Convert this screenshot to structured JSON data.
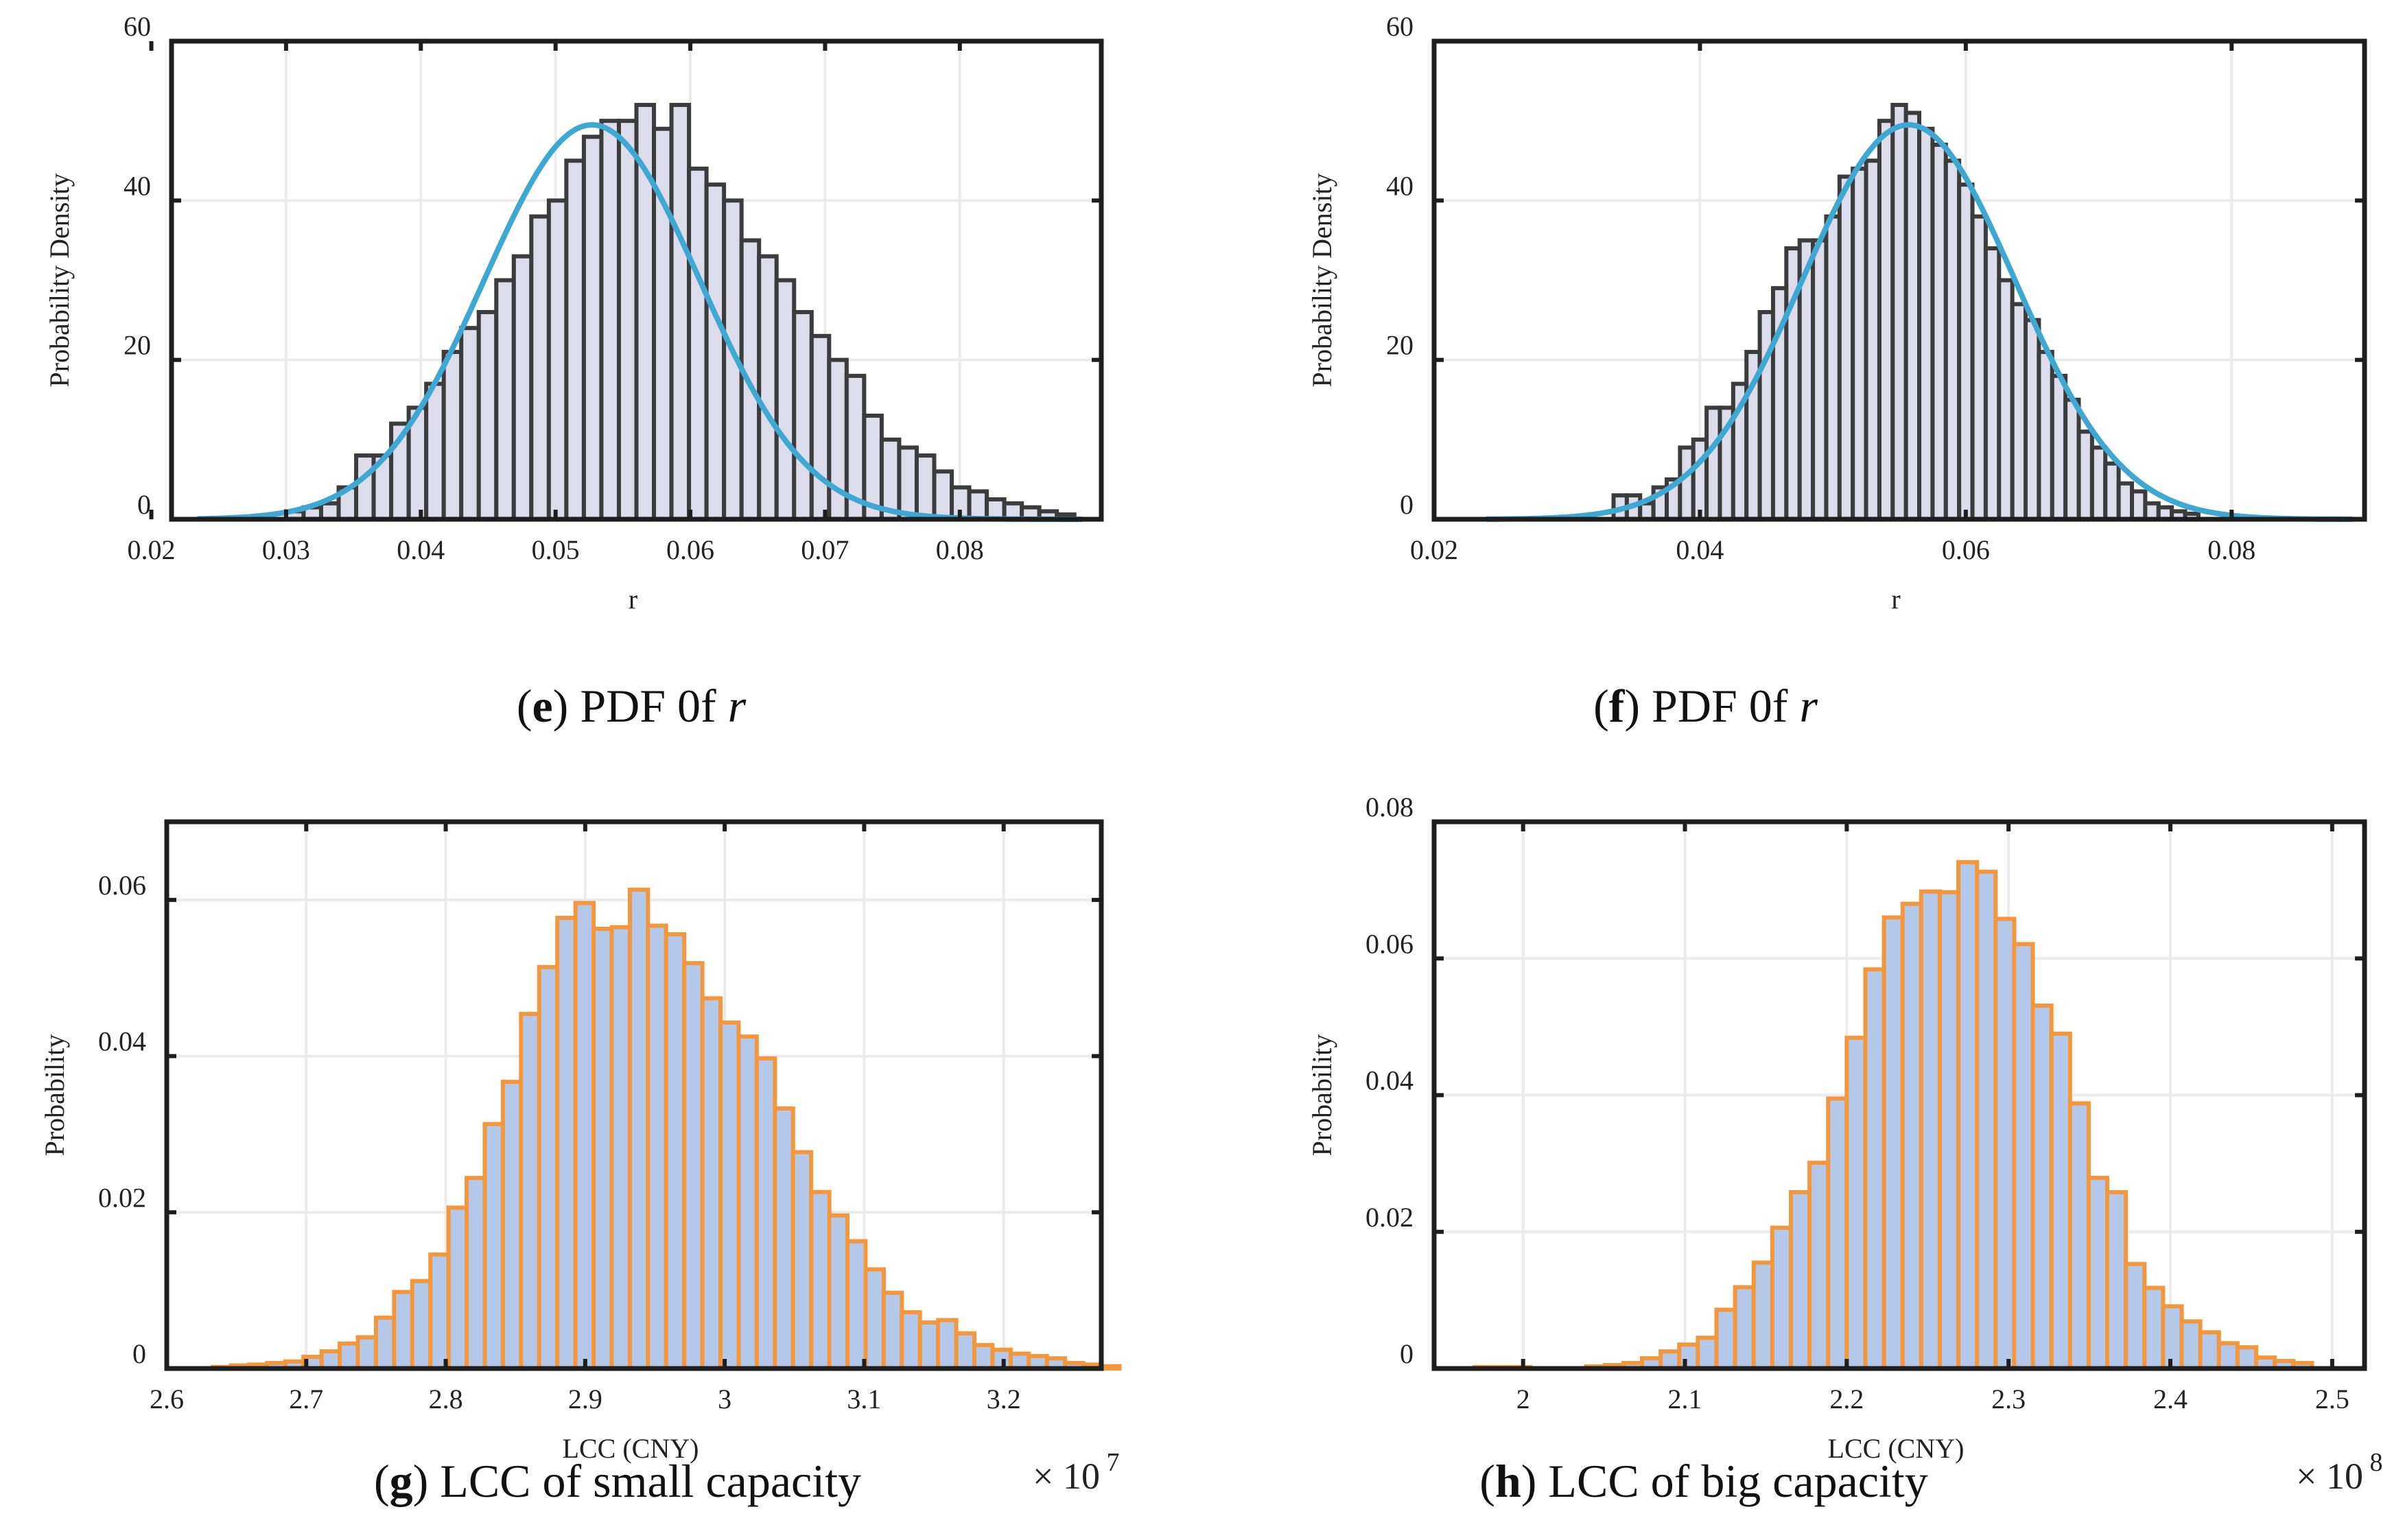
{
  "panels": [
    {
      "id": "e",
      "caption": {
        "letter": "e",
        "text": " PDF 0f ",
        "var": "r"
      },
      "chart_data": {
        "type": "bar",
        "ylabel": "Probability Density",
        "xlabel": "r",
        "multiplier": "",
        "xlim": [
          0.0215,
          0.0905
        ],
        "ylim": [
          0,
          60
        ],
        "xticks": [
          0.02,
          0.03,
          0.04,
          0.05,
          0.06,
          0.07,
          0.08
        ],
        "xtick_labels": [
          "0.02",
          "0.03",
          "0.04",
          "0.05",
          "0.06",
          "0.07",
          "0.08"
        ],
        "yticks": [
          0,
          20,
          40,
          60
        ],
        "ytick_labels": [
          "0",
          "20",
          "40",
          "60"
        ],
        "bin_start": 0.03,
        "bin_width": 0.0013,
        "values": [
          1,
          1.5,
          2,
          4,
          8,
          8,
          12,
          14,
          17,
          21,
          24,
          26,
          30,
          33,
          38,
          40,
          45,
          48,
          50,
          50,
          52,
          49,
          52,
          44,
          42,
          40,
          35,
          33,
          30,
          26,
          23,
          20,
          18,
          13,
          10,
          9,
          8,
          6,
          4,
          3.5,
          2.5,
          2,
          1.5,
          1,
          0.6
        ],
        "bar_fill": "#dcdceb",
        "bar_stroke": "#3c3c3c",
        "fit": {
          "type": "normal",
          "mu": 0.0527,
          "sigma": 0.008,
          "peak": 49.5,
          "color": "#3ea8d2",
          "range": [
            0.0235,
            0.089
          ]
        }
      }
    },
    {
      "id": "f",
      "caption": {
        "letter": "f",
        "text": " PDF 0f ",
        "var": "r"
      },
      "chart_data": {
        "type": "bar",
        "ylabel": "Probability Density",
        "xlabel": "r",
        "multiplier": "",
        "xlim": [
          0.02,
          0.09
        ],
        "ylim": [
          0,
          60
        ],
        "xticks": [
          0.02,
          0.04,
          0.06,
          0.08
        ],
        "xtick_labels": [
          "0.02",
          "0.04",
          "0.06",
          "0.08"
        ],
        "yticks": [
          0,
          20,
          40,
          60
        ],
        "ytick_labels": [
          "0",
          "20",
          "40",
          "60"
        ],
        "bin_start": 0.0335,
        "bin_width": 0.001,
        "values": [
          3,
          3,
          2,
          4,
          5,
          9,
          10,
          14,
          14,
          17,
          21,
          26,
          29,
          34,
          35,
          35,
          38,
          43,
          44,
          45,
          50,
          52,
          51,
          49,
          47,
          45,
          42,
          38,
          34,
          30,
          27,
          25,
          21,
          18,
          15,
          11,
          9,
          7,
          4.5,
          3.5,
          2,
          1.5,
          1,
          0.7
        ],
        "bar_fill": "#dcdceb",
        "bar_stroke": "#3c3c3c",
        "fit": {
          "type": "normal",
          "mu": 0.0557,
          "sigma": 0.008,
          "peak": 49.5,
          "color": "#3ea8d2",
          "range": [
            0.024,
            0.089
          ]
        }
      }
    },
    {
      "id": "g",
      "caption": {
        "letter": "g",
        "text": " LCC of small capacity",
        "var": ""
      },
      "chart_data": {
        "type": "bar",
        "ylabel": "Probability",
        "xlabel": "LCC (CNY)",
        "multiplier": "× 10 7",
        "xlim": [
          2.6,
          3.27
        ],
        "ylim": [
          0,
          0.07
        ],
        "xticks": [
          2.6,
          2.7,
          2.8,
          2.9,
          3.0,
          3.1,
          3.2
        ],
        "xtick_labels": [
          "2.6",
          "2.7",
          "2.8",
          "2.9",
          "3",
          "3.1",
          "3.2"
        ],
        "yticks": [
          0,
          0.02,
          0.04,
          0.06
        ],
        "ytick_labels": [
          "0",
          "0.02",
          "0.04",
          "0.06"
        ],
        "bin_start": 2.633,
        "bin_width": 0.013,
        "values": [
          0.0002,
          0.0004,
          0.0005,
          0.0007,
          0.0009,
          0.0015,
          0.0022,
          0.0032,
          0.004,
          0.0065,
          0.0098,
          0.0112,
          0.0146,
          0.0206,
          0.0244,
          0.0313,
          0.0367,
          0.0454,
          0.0514,
          0.0577,
          0.0596,
          0.0563,
          0.0565,
          0.0613,
          0.0567,
          0.0556,
          0.0519,
          0.0474,
          0.0443,
          0.0425,
          0.0397,
          0.0333,
          0.0277,
          0.0226,
          0.0196,
          0.0163,
          0.0127,
          0.0097,
          0.0072,
          0.0059,
          0.0062,
          0.0045,
          0.003,
          0.0024,
          0.0019,
          0.0016,
          0.0013,
          0.0007,
          0.0005,
          0.0003
        ],
        "bar_fill": "#b4c8ea",
        "bar_stroke": "#f3963c",
        "fit": null
      }
    },
    {
      "id": "h",
      "caption": {
        "letter": "h",
        "text": " LCC of big capacity",
        "var": ""
      },
      "chart_data": {
        "type": "bar",
        "ylabel": "Probability",
        "xlabel": "LCC (CNY)",
        "multiplier": "× 10 8",
        "xlim": [
          1.945,
          2.52
        ],
        "ylim": [
          0,
          0.08
        ],
        "xticks": [
          2.0,
          2.1,
          2.2,
          2.3,
          2.4,
          2.5
        ],
        "xtick_labels": [
          "2",
          "2.1",
          "2.2",
          "2.3",
          "2.4",
          "2.5"
        ],
        "yticks": [
          0,
          0.02,
          0.04,
          0.06,
          0.08
        ],
        "ytick_labels": [
          "0",
          "0.02",
          "0.04",
          "0.06",
          "0.08"
        ],
        "bin_start": 1.97,
        "bin_width": 0.0115,
        "values": [
          0.0002,
          0.0002,
          0.0002,
          0.0,
          0.0,
          0.0,
          0.0003,
          0.0005,
          0.0008,
          0.0015,
          0.0025,
          0.0035,
          0.0045,
          0.0086,
          0.0119,
          0.0155,
          0.0206,
          0.0258,
          0.0301,
          0.0395,
          0.0484,
          0.0584,
          0.066,
          0.068,
          0.0698,
          0.0697,
          0.0741,
          0.0727,
          0.0658,
          0.0621,
          0.0531,
          0.049,
          0.0388,
          0.0279,
          0.0258,
          0.0153,
          0.0118,
          0.0091,
          0.0069,
          0.0053,
          0.0037,
          0.0031,
          0.0016,
          0.0011,
          0.0008
        ],
        "bar_fill": "#b4c8ea",
        "bar_stroke": "#f3963c",
        "fit": null
      }
    }
  ]
}
